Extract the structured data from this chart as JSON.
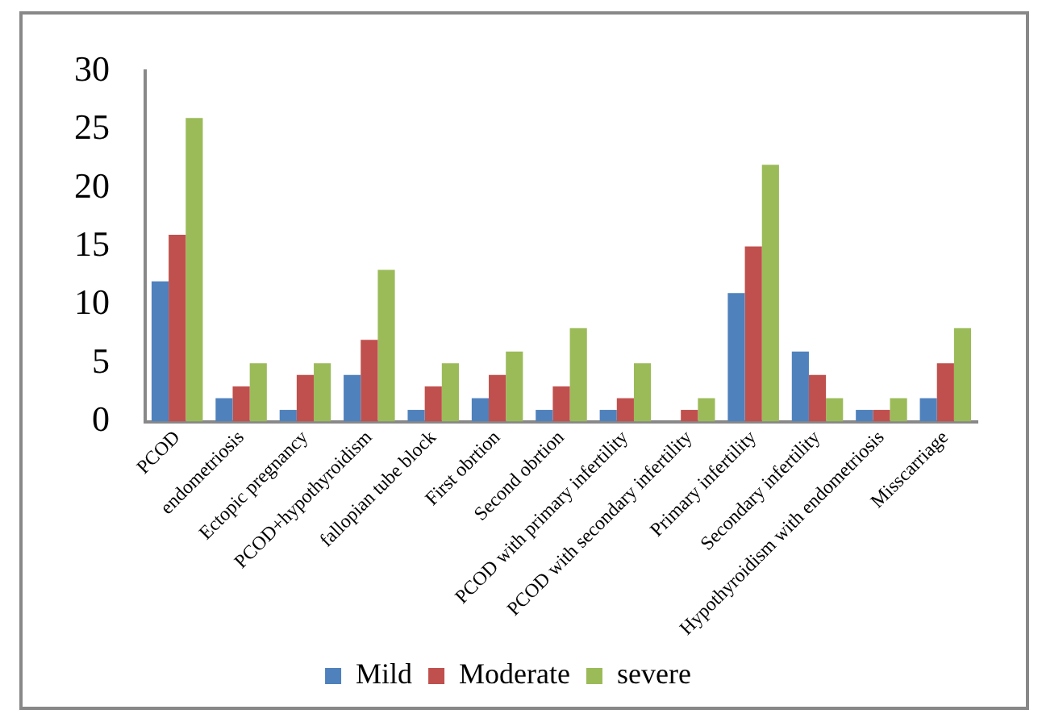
{
  "chart_data": {
    "type": "bar",
    "categories": [
      "PCOD",
      "endometriosis",
      "Ectopic pregnancy",
      "PCOD+hypothyroidism",
      "fallopian tube block",
      "First obrtion",
      "Second obrtion",
      "PCOD with primary infertility",
      "PCOD with secondary infertility",
      "Primary infertility",
      "Secondary infertility",
      "Hypothyroidism with endometriosis",
      "Misscarriage"
    ],
    "series": [
      {
        "name": "Mild",
        "color": "#4f81bd",
        "values": [
          12,
          2,
          1,
          4,
          1,
          2,
          1,
          1,
          0,
          11,
          6,
          1,
          2
        ]
      },
      {
        "name": "Moderate",
        "color": "#c0504d",
        "values": [
          16,
          3,
          4,
          7,
          3,
          4,
          3,
          2,
          1,
          15,
          4,
          1,
          5
        ]
      },
      {
        "name": "severe",
        "color": "#9bbb59",
        "values": [
          26,
          5,
          5,
          13,
          5,
          6,
          8,
          5,
          2,
          22,
          2,
          2,
          8
        ]
      }
    ],
    "ylim": [
      0,
      30
    ],
    "yticks": [
      0,
      5,
      10,
      15,
      20,
      25,
      30
    ],
    "grid": false,
    "legend": "bottom"
  }
}
